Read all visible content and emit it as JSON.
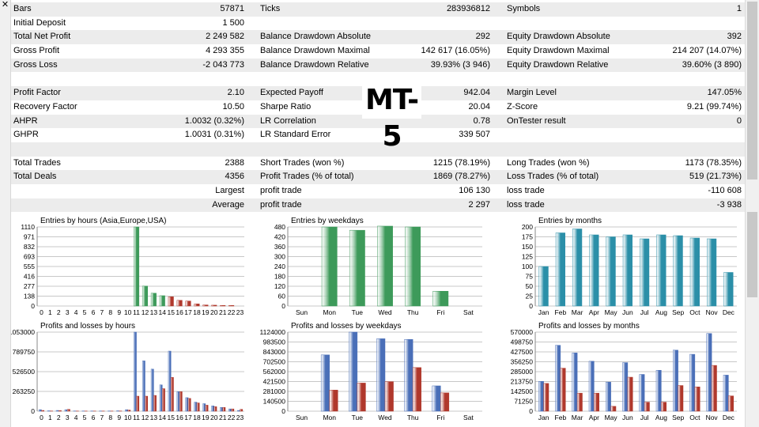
{
  "window": {
    "close_glyph": "✕"
  },
  "badge": "MT-5",
  "rows": [
    {
      "shade": true,
      "cells": [
        "Bars",
        "57871",
        "Ticks",
        "283936812",
        "Symbols",
        "1"
      ]
    },
    {
      "shade": false,
      "cells": [
        "Initial Deposit",
        "1 500",
        "",
        "",
        "",
        ""
      ]
    },
    {
      "shade": true,
      "cells": [
        "Total Net Profit",
        "2 249 582",
        "Balance Drawdown Absolute",
        "292",
        "Equity Drawdown Absolute",
        "392"
      ]
    },
    {
      "shade": false,
      "cells": [
        "Gross Profit",
        "4 293 355",
        "Balance Drawdown Maximal",
        "142 617 (16.05%)",
        "Equity Drawdown Maximal",
        "214 207 (14.07%)"
      ]
    },
    {
      "shade": true,
      "cells": [
        "Gross Loss",
        "-2 043 773",
        "Balance Drawdown Relative",
        "39.93% (3 946)",
        "Equity Drawdown Relative",
        "39.60% (3 890)"
      ]
    },
    {
      "shade": false,
      "cells": [
        "",
        "",
        "",
        "",
        "",
        ""
      ]
    },
    {
      "shade": true,
      "cells": [
        "Profit Factor",
        "2.10",
        "Expected Payoff",
        "942.04",
        "Margin Level",
        "147.05%"
      ]
    },
    {
      "shade": false,
      "cells": [
        "Recovery Factor",
        "10.50",
        "Sharpe Ratio",
        "20.04",
        "Z-Score",
        "9.21 (99.74%)"
      ]
    },
    {
      "shade": true,
      "cells": [
        "AHPR",
        "1.0032 (0.32%)",
        "LR Correlation",
        "0.78",
        "OnTester result",
        "0"
      ]
    },
    {
      "shade": false,
      "cells": [
        "GHPR",
        "1.0031 (0.31%)",
        "LR Standard Error",
        "339 507",
        "",
        ""
      ]
    },
    {
      "shade": true,
      "cells": [
        "",
        "",
        "",
        "",
        "",
        ""
      ]
    },
    {
      "shade": false,
      "cells": [
        "Total Trades",
        "2388",
        "Short Trades (won %)",
        "1215 (78.19%)",
        "Long Trades (won %)",
        "1173 (78.35%)"
      ]
    },
    {
      "shade": true,
      "cells": [
        "Total Deals",
        "4356",
        "Profit Trades (% of total)",
        "1869 (78.27%)",
        "Loss Trades (% of total)",
        "519 (21.73%)"
      ]
    },
    {
      "shade": false,
      "cells": [
        "",
        "Largest",
        "profit trade",
        "106 130",
        "loss trade",
        "-110 608"
      ]
    },
    {
      "shade": true,
      "cells": [
        "",
        "Average",
        "profit trade",
        "2 297",
        "loss trade",
        "-3 938"
      ]
    }
  ],
  "colors": {
    "green": "#3d9a5a",
    "teal": "#2b8fa8",
    "blue": "#4a6fb8",
    "red": "#b0382c",
    "grid": "#c8c8c8"
  },
  "chart_data": [
    {
      "id": "hours",
      "type": "bar",
      "title": "Entries by hours (Asia,Europe,USA)",
      "categories": [
        "0",
        "1",
        "2",
        "3",
        "4",
        "5",
        "6",
        "7",
        "8",
        "9",
        "10",
        "11",
        "12",
        "13",
        "14",
        "15",
        "16",
        "17",
        "18",
        "19",
        "20",
        "21",
        "22",
        "23"
      ],
      "values": [
        0,
        0,
        0,
        0,
        0,
        0,
        0,
        0,
        0,
        0,
        0,
        1110,
        280,
        180,
        145,
        130,
        80,
        70,
        30,
        15,
        12,
        8,
        8,
        0
      ],
      "colors": [
        "green",
        "green",
        "green",
        "green",
        "green",
        "green",
        "green",
        "green",
        "green",
        "green",
        "green",
        "green",
        "green",
        "green",
        "green",
        "red",
        "red",
        "red",
        "red",
        "red",
        "red",
        "red",
        "red",
        "red"
      ],
      "yticks": [
        "1110",
        "971",
        "832",
        "693",
        "555",
        "416",
        "277",
        "138",
        "0"
      ],
      "ylim": [
        0,
        1110
      ]
    },
    {
      "id": "weekdays",
      "type": "bar",
      "title": "Entries by weekdays",
      "categories": [
        "Sun",
        "Mon",
        "Tue",
        "Wed",
        "Thu",
        "Fri",
        "Sat"
      ],
      "values": [
        0,
        480,
        460,
        485,
        480,
        90,
        0
      ],
      "yticks": [
        "480",
        "420",
        "360",
        "300",
        "240",
        "180",
        "120",
        "60",
        "0"
      ],
      "ylim": [
        0,
        480
      ]
    },
    {
      "id": "months",
      "type": "bar",
      "title": "Entries by months",
      "categories": [
        "Jan",
        "Feb",
        "Mar",
        "Apr",
        "May",
        "Jun",
        "Jul",
        "Aug",
        "Sep",
        "Oct",
        "Nov",
        "Dec"
      ],
      "values": [
        100,
        185,
        195,
        180,
        175,
        180,
        170,
        180,
        178,
        172,
        170,
        85
      ],
      "yticks": [
        "200",
        "175",
        "150",
        "125",
        "100",
        "75",
        "50",
        "25",
        "0"
      ],
      "ylim": [
        0,
        200
      ]
    },
    {
      "id": "pl-hours",
      "type": "bar",
      "title": "Profits and losses by hours",
      "categories": [
        "0",
        "1",
        "2",
        "3",
        "4",
        "5",
        "6",
        "7",
        "8",
        "9",
        "10",
        "11",
        "12",
        "13",
        "14",
        "15",
        "16",
        "17",
        "18",
        "19",
        "20",
        "21",
        "22",
        "23"
      ],
      "series": [
        {
          "values": [
            20000,
            5000,
            10000,
            20000,
            3000,
            3000,
            3000,
            3000,
            3000,
            5000,
            20000,
            1053000,
            670000,
            560000,
            350000,
            800000,
            260000,
            180000,
            120000,
            100000,
            70000,
            50000,
            30000,
            10000
          ]
        },
        {
          "values": [
            10000,
            3000,
            8000,
            25000,
            2000,
            2000,
            2000,
            2000,
            2000,
            3000,
            15000,
            200000,
            200000,
            210000,
            300000,
            450000,
            260000,
            170000,
            110000,
            80000,
            60000,
            50000,
            30000,
            25000
          ]
        }
      ],
      "yticks": [
        "1053000",
        "789750",
        "526500",
        "263250",
        "0"
      ],
      "ylim": [
        0,
        1053000
      ]
    },
    {
      "id": "pl-weekdays",
      "type": "bar",
      "title": "Profits and losses by weekdays",
      "categories": [
        "Sun",
        "Mon",
        "Tue",
        "Wed",
        "Thu",
        "Fri",
        "Sat"
      ],
      "series": [
        {
          "values": [
            0,
            800000,
            1124000,
            1030000,
            1020000,
            360000,
            0
          ]
        },
        {
          "values": [
            0,
            300000,
            400000,
            420000,
            620000,
            260000,
            0
          ]
        }
      ],
      "yticks": [
        "1124000",
        "983500",
        "843000",
        "702500",
        "562000",
        "421500",
        "281000",
        "140500",
        "0"
      ],
      "ylim": [
        0,
        1124000
      ]
    },
    {
      "id": "pl-months",
      "type": "bar",
      "title": "Profits and losses by months",
      "categories": [
        "Jan",
        "Feb",
        "Mar",
        "Apr",
        "May",
        "Jun",
        "Jul",
        "Aug",
        "Sep",
        "Oct",
        "Nov",
        "Dec"
      ],
      "series": [
        {
          "values": [
            215000,
            475000,
            420000,
            360000,
            210000,
            350000,
            265000,
            295000,
            440000,
            410000,
            560000,
            260000
          ]
        },
        {
          "values": [
            200000,
            310000,
            130000,
            130000,
            35000,
            245000,
            65000,
            65000,
            185000,
            175000,
            330000,
            110000
          ]
        }
      ],
      "yticks": [
        "570000",
        "498750",
        "427500",
        "356250",
        "285000",
        "213750",
        "142500",
        "71250",
        "0"
      ],
      "ylim": [
        0,
        570000
      ]
    }
  ]
}
